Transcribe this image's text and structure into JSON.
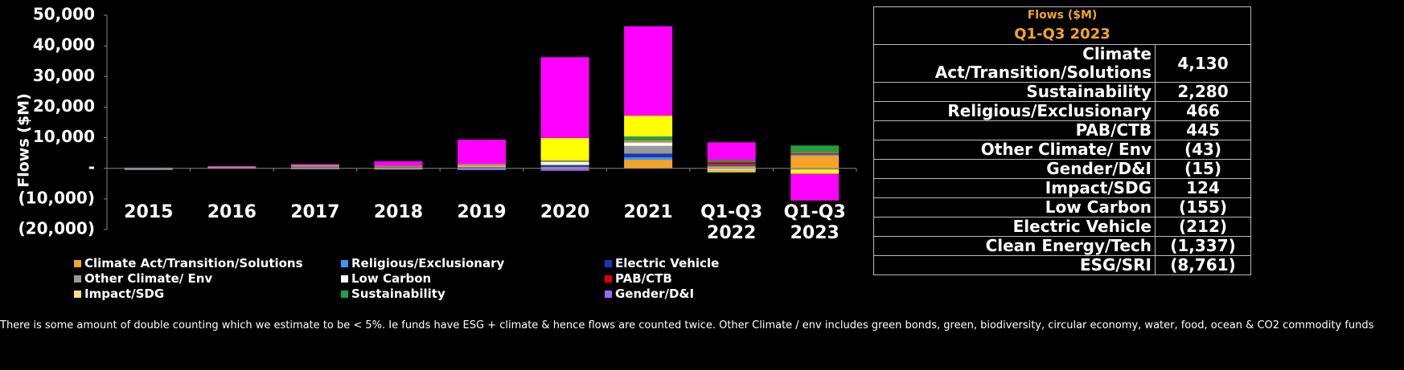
{
  "chart_data": {
    "type": "bar",
    "stacked": true,
    "y_label": "Flows ($M)",
    "categories": [
      "2015",
      "2016",
      "2017",
      "2018",
      "2019",
      "2020",
      "2021",
      "Q1-Q3 2022",
      "Q1-Q3 2023"
    ],
    "ylim": [
      -20000,
      50000
    ],
    "yticks": [
      {
        "value": -20000,
        "label": "(20,000)"
      },
      {
        "value": -10000,
        "label": "(10,000)"
      },
      {
        "value": 0,
        "label": "-"
      },
      {
        "value": 10000,
        "label": "10,000"
      },
      {
        "value": 20000,
        "label": "20,000"
      },
      {
        "value": 30000,
        "label": "30,000"
      },
      {
        "value": 40000,
        "label": "40,000"
      },
      {
        "value": 50000,
        "label": "50,000"
      }
    ],
    "series": [
      {
        "name": "Climate Act/Transition/Solutions",
        "color": "#f7a325",
        "values": [
          50,
          100,
          200,
          200,
          300,
          300,
          2800,
          600,
          4130
        ]
      },
      {
        "name": "Religious/Exclusionary",
        "color": "#3399ff",
        "values": [
          -100,
          50,
          100,
          50,
          -300,
          200,
          800,
          200,
          466
        ]
      },
      {
        "name": "Electric Vehicle",
        "color": "#2233bb",
        "values": [
          0,
          0,
          50,
          50,
          100,
          400,
          1200,
          300,
          -212
        ]
      },
      {
        "name": "Other Climate/ Env",
        "color": "#999999",
        "values": [
          50,
          100,
          200,
          100,
          200,
          300,
          2500,
          200,
          -43
        ]
      },
      {
        "name": "Low Carbon",
        "color": "#ffffff",
        "values": [
          -100,
          50,
          100,
          50,
          200,
          900,
          1200,
          -300,
          -155
        ]
      },
      {
        "name": "PAB/CTB",
        "color": "#dd0000",
        "values": [
          0,
          0,
          50,
          50,
          50,
          100,
          200,
          700,
          445
        ]
      },
      {
        "name": "Impact/SDG",
        "color": "#ffe08a",
        "values": [
          -100,
          -100,
          -200,
          -300,
          200,
          200,
          300,
          -500,
          124
        ]
      },
      {
        "name": "Sustainability",
        "color": "#22a03c",
        "values": [
          -200,
          50,
          100,
          100,
          100,
          200,
          1300,
          700,
          2280
        ]
      },
      {
        "name": "Gender/D&I",
        "color": "#9966ff",
        "values": [
          -100,
          -100,
          -100,
          -100,
          -300,
          -800,
          100,
          -100,
          -15
        ]
      },
      {
        "color": "#ffff00",
        "values": [
          50,
          100,
          200,
          200,
          200,
          7300,
          6800,
          -400,
          -1337
        ]
      },
      {
        "color": "#ff00ff",
        "values": [
          100,
          300,
          400,
          1500,
          8000,
          26400,
          29200,
          5800,
          -8761
        ]
      }
    ]
  },
  "table": {
    "title": "Flows ($M)",
    "subtitle": "Q1-Q3 2023",
    "rows": [
      [
        "Climate Act/Transition/Solutions",
        "4,130"
      ],
      [
        "Sustainability",
        "2,280"
      ],
      [
        "Religious/Exclusionary",
        "466"
      ],
      [
        "PAB/CTB",
        "445"
      ],
      [
        "Other Climate/ Env",
        "(43)"
      ],
      [
        "Gender/D&I",
        "(15)"
      ],
      [
        "Impact/SDG",
        "124"
      ],
      [
        "Low Carbon",
        "(155)"
      ],
      [
        "Electric Vehicle",
        "(212)"
      ],
      [
        "Clean Energy/Tech",
        "(1,337)"
      ],
      [
        "ESG/SRI",
        "(8,761)"
      ]
    ]
  },
  "footnote": "There is some amount of double counting which we estimate to be < 5%. Ie funds have ESG + climate & hence flows are counted twice. Other Climate / env includes green bonds, green, biodiversity, circular economy, water, food, ocean & CO2 commodity funds"
}
